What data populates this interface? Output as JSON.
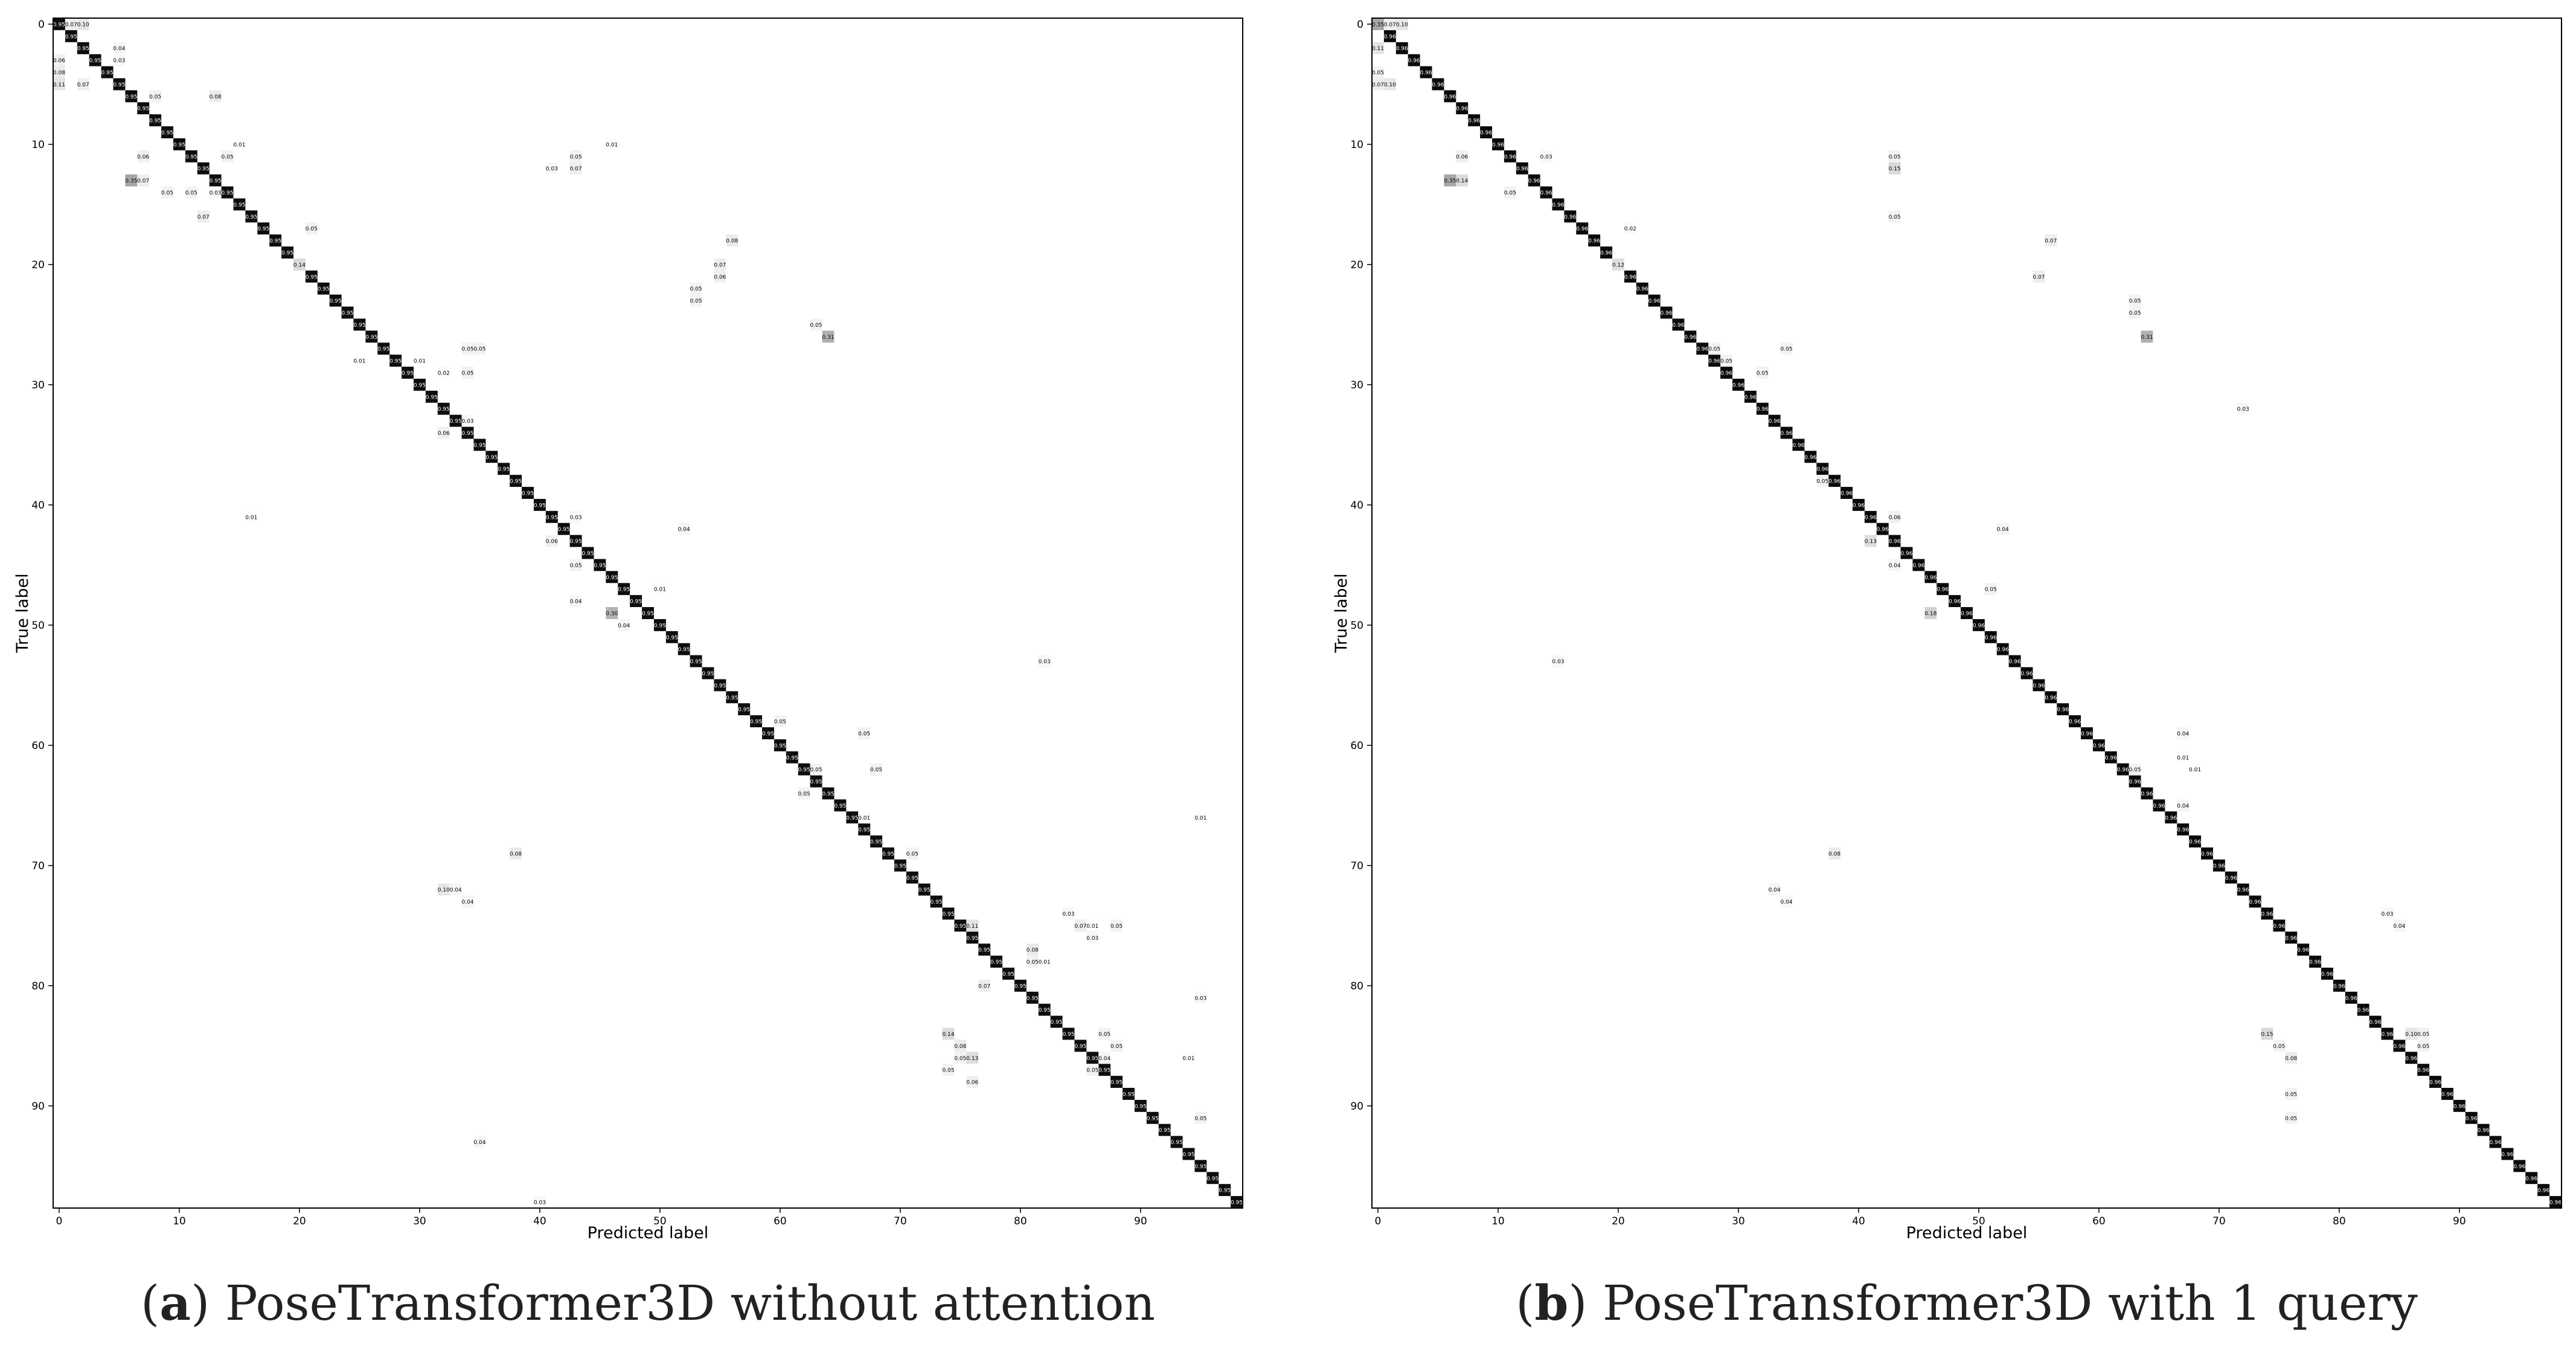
{
  "chart_data": [
    {
      "type": "heatmap",
      "caption": "PoseTransformer3D without attention",
      "caption_letter": "a",
      "xlabel": "Predicted label",
      "ylabel": "True label",
      "n_classes": 99,
      "xlim": [
        0,
        98
      ],
      "ylim": [
        98,
        0
      ],
      "x_ticks": [
        0,
        10,
        20,
        30,
        40,
        50,
        60,
        70,
        80,
        90
      ],
      "y_ticks": [
        0,
        10,
        20,
        30,
        40,
        50,
        60,
        70,
        80,
        90
      ],
      "grid": false,
      "colormap": "white-to-black",
      "diagonal_value": 0.95,
      "off_diagonal_cells": [
        {
          "true": 0,
          "pred": 1,
          "value": 0.07
        },
        {
          "true": 0,
          "pred": 2,
          "value": 0.1
        },
        {
          "true": 2,
          "pred": 5,
          "value": 0.04
        },
        {
          "true": 3,
          "pred": 0,
          "value": 0.06
        },
        {
          "true": 3,
          "pred": 5,
          "value": 0.03
        },
        {
          "true": 4,
          "pred": 0,
          "value": 0.08
        },
        {
          "true": 5,
          "pred": 0,
          "value": 0.11
        },
        {
          "true": 5,
          "pred": 2,
          "value": 0.07
        },
        {
          "true": 6,
          "pred": 8,
          "value": 0.05
        },
        {
          "true": 6,
          "pred": 13,
          "value": 0.08
        },
        {
          "true": 10,
          "pred": 15,
          "value": 0.01
        },
        {
          "true": 11,
          "pred": 7,
          "value": 0.06
        },
        {
          "true": 11,
          "pred": 14,
          "value": 0.05
        },
        {
          "true": 11,
          "pred": 43,
          "value": 0.05
        },
        {
          "true": 10,
          "pred": 46,
          "value": 0.01
        },
        {
          "true": 12,
          "pred": 41,
          "value": 0.03
        },
        {
          "true": 12,
          "pred": 43,
          "value": 0.07
        },
        {
          "true": 13,
          "pred": 6,
          "value": 0.35
        },
        {
          "true": 13,
          "pred": 7,
          "value": 0.07
        },
        {
          "true": 14,
          "pred": 9,
          "value": 0.05
        },
        {
          "true": 14,
          "pred": 11,
          "value": 0.05
        },
        {
          "true": 14,
          "pred": 13,
          "value": 0.03
        },
        {
          "true": 16,
          "pred": 12,
          "value": 0.07
        },
        {
          "true": 17,
          "pred": 21,
          "value": 0.05
        },
        {
          "true": 18,
          "pred": 56,
          "value": 0.08
        },
        {
          "true": 20,
          "pred": 20,
          "value": 0.14
        },
        {
          "true": 20,
          "pred": 55,
          "value": 0.07
        },
        {
          "true": 21,
          "pred": 55,
          "value": 0.06
        },
        {
          "true": 22,
          "pred": 53,
          "value": 0.05
        },
        {
          "true": 23,
          "pred": 53,
          "value": 0.05
        },
        {
          "true": 25,
          "pred": 63,
          "value": 0.05
        },
        {
          "true": 26,
          "pred": 64,
          "value": 0.31
        },
        {
          "true": 27,
          "pred": 34,
          "value": 0.05
        },
        {
          "true": 27,
          "pred": 35,
          "value": 0.05
        },
        {
          "true": 28,
          "pred": 25,
          "value": 0.01
        },
        {
          "true": 28,
          "pred": 30,
          "value": 0.01
        },
        {
          "true": 29,
          "pred": 32,
          "value": 0.02
        },
        {
          "true": 29,
          "pred": 34,
          "value": 0.05
        },
        {
          "true": 33,
          "pred": 34,
          "value": 0.03
        },
        {
          "true": 34,
          "pred": 32,
          "value": 0.06
        },
        {
          "true": 41,
          "pred": 16,
          "value": 0.01
        },
        {
          "true": 41,
          "pred": 43,
          "value": 0.03
        },
        {
          "true": 42,
          "pred": 52,
          "value": 0.04
        },
        {
          "true": 43,
          "pred": 41,
          "value": 0.06
        },
        {
          "true": 45,
          "pred": 43,
          "value": 0.05
        },
        {
          "true": 47,
          "pred": 50,
          "value": 0.01
        },
        {
          "true": 48,
          "pred": 43,
          "value": 0.04
        },
        {
          "true": 49,
          "pred": 46,
          "value": 0.3
        },
        {
          "true": 50,
          "pred": 47,
          "value": 0.04
        },
        {
          "true": 53,
          "pred": 82,
          "value": 0.03
        },
        {
          "true": 58,
          "pred": 60,
          "value": 0.05
        },
        {
          "true": 59,
          "pred": 67,
          "value": 0.05
        },
        {
          "true": 62,
          "pred": 63,
          "value": 0.05
        },
        {
          "true": 62,
          "pred": 68,
          "value": 0.05
        },
        {
          "true": 64,
          "pred": 62,
          "value": 0.05
        },
        {
          "true": 66,
          "pred": 67,
          "value": 0.01
        },
        {
          "true": 66,
          "pred": 95,
          "value": 0.01
        },
        {
          "true": 69,
          "pred": 38,
          "value": 0.08
        },
        {
          "true": 69,
          "pred": 71,
          "value": 0.05
        },
        {
          "true": 72,
          "pred": 32,
          "value": 0.1
        },
        {
          "true": 72,
          "pred": 33,
          "value": 0.04
        },
        {
          "true": 73,
          "pred": 34,
          "value": 0.04
        },
        {
          "true": 74,
          "pred": 84,
          "value": 0.03
        },
        {
          "true": 75,
          "pred": 76,
          "value": 0.11
        },
        {
          "true": 75,
          "pred": 85,
          "value": 0.07
        },
        {
          "true": 75,
          "pred": 86,
          "value": 0.01
        },
        {
          "true": 75,
          "pred": 88,
          "value": 0.05
        },
        {
          "true": 76,
          "pred": 86,
          "value": 0.03
        },
        {
          "true": 77,
          "pred": 81,
          "value": 0.08
        },
        {
          "true": 78,
          "pred": 81,
          "value": 0.05
        },
        {
          "true": 78,
          "pred": 82,
          "value": 0.01
        },
        {
          "true": 80,
          "pred": 77,
          "value": 0.07
        },
        {
          "true": 81,
          "pred": 95,
          "value": 0.03
        },
        {
          "true": 84,
          "pred": 74,
          "value": 0.14
        },
        {
          "true": 84,
          "pred": 87,
          "value": 0.05
        },
        {
          "true": 85,
          "pred": 75,
          "value": 0.08
        },
        {
          "true": 85,
          "pred": 88,
          "value": 0.05
        },
        {
          "true": 86,
          "pred": 75,
          "value": 0.05
        },
        {
          "true": 86,
          "pred": 76,
          "value": 0.13
        },
        {
          "true": 86,
          "pred": 94,
          "value": 0.01
        },
        {
          "true": 86,
          "pred": 87,
          "value": 0.04
        },
        {
          "true": 87,
          "pred": 74,
          "value": 0.05
        },
        {
          "true": 87,
          "pred": 86,
          "value": 0.05
        },
        {
          "true": 88,
          "pred": 76,
          "value": 0.06
        },
        {
          "true": 91,
          "pred": 95,
          "value": 0.05
        },
        {
          "true": 93,
          "pred": 35,
          "value": 0.04
        },
        {
          "true": 98,
          "pred": 40,
          "value": 0.03
        }
      ]
    },
    {
      "type": "heatmap",
      "caption": "PoseTransformer3D with 1 query",
      "caption_letter": "b",
      "xlabel": "Predicted label",
      "ylabel": "True label",
      "n_classes": 99,
      "xlim": [
        0,
        98
      ],
      "ylim": [
        98,
        0
      ],
      "x_ticks": [
        0,
        10,
        20,
        30,
        40,
        50,
        60,
        70,
        80,
        90
      ],
      "y_ticks": [
        0,
        10,
        20,
        30,
        40,
        50,
        60,
        70,
        80,
        90
      ],
      "grid": false,
      "colormap": "white-to-black",
      "diagonal_value": 0.96,
      "off_diagonal_cells": [
        {
          "true": 0,
          "pred": 0,
          "value": 0.35
        },
        {
          "true": 0,
          "pred": 1,
          "value": 0.07
        },
        {
          "true": 0,
          "pred": 2,
          "value": 0.1
        },
        {
          "true": 2,
          "pred": 0,
          "value": 0.11
        },
        {
          "true": 4,
          "pred": 0,
          "value": 0.05
        },
        {
          "true": 5,
          "pred": 0,
          "value": 0.07
        },
        {
          "true": 5,
          "pred": 1,
          "value": 0.1
        },
        {
          "true": 11,
          "pred": 7,
          "value": 0.06
        },
        {
          "true": 11,
          "pred": 14,
          "value": 0.03
        },
        {
          "true": 11,
          "pred": 43,
          "value": 0.05
        },
        {
          "true": 12,
          "pred": 43,
          "value": 0.15
        },
        {
          "true": 13,
          "pred": 6,
          "value": 0.35
        },
        {
          "true": 13,
          "pred": 7,
          "value": 0.14
        },
        {
          "true": 14,
          "pred": 11,
          "value": 0.05
        },
        {
          "true": 16,
          "pred": 43,
          "value": 0.05
        },
        {
          "true": 17,
          "pred": 21,
          "value": 0.02
        },
        {
          "true": 18,
          "pred": 56,
          "value": 0.07
        },
        {
          "true": 20,
          "pred": 20,
          "value": 0.12
        },
        {
          "true": 21,
          "pred": 55,
          "value": 0.07
        },
        {
          "true": 23,
          "pred": 63,
          "value": 0.05
        },
        {
          "true": 24,
          "pred": 63,
          "value": 0.05
        },
        {
          "true": 26,
          "pred": 64,
          "value": 0.31
        },
        {
          "true": 27,
          "pred": 28,
          "value": 0.05
        },
        {
          "true": 27,
          "pred": 34,
          "value": 0.05
        },
        {
          "true": 28,
          "pred": 29,
          "value": 0.05
        },
        {
          "true": 29,
          "pred": 32,
          "value": 0.05
        },
        {
          "true": 32,
          "pred": 72,
          "value": 0.03
        },
        {
          "true": 38,
          "pred": 37,
          "value": 0.05
        },
        {
          "true": 41,
          "pred": 43,
          "value": 0.06
        },
        {
          "true": 42,
          "pred": 52,
          "value": 0.04
        },
        {
          "true": 43,
          "pred": 41,
          "value": 0.13
        },
        {
          "true": 45,
          "pred": 43,
          "value": 0.04
        },
        {
          "true": 47,
          "pred": 51,
          "value": 0.05
        },
        {
          "true": 49,
          "pred": 46,
          "value": 0.18
        },
        {
          "true": 53,
          "pred": 15,
          "value": 0.03
        },
        {
          "true": 59,
          "pred": 67,
          "value": 0.04
        },
        {
          "true": 61,
          "pred": 67,
          "value": 0.01
        },
        {
          "true": 62,
          "pred": 63,
          "value": 0.05
        },
        {
          "true": 62,
          "pred": 68,
          "value": 0.01
        },
        {
          "true": 65,
          "pred": 67,
          "value": 0.04
        },
        {
          "true": 69,
          "pred": 38,
          "value": 0.08
        },
        {
          "true": 72,
          "pred": 33,
          "value": 0.04
        },
        {
          "true": 73,
          "pred": 34,
          "value": 0.04
        },
        {
          "true": 74,
          "pred": 84,
          "value": 0.03
        },
        {
          "true": 75,
          "pred": 85,
          "value": 0.04
        },
        {
          "true": 84,
          "pred": 74,
          "value": 0.15
        },
        {
          "true": 84,
          "pred": 86,
          "value": 0.1
        },
        {
          "true": 84,
          "pred": 87,
          "value": 0.05
        },
        {
          "true": 85,
          "pred": 75,
          "value": 0.05
        },
        {
          "true": 85,
          "pred": 87,
          "value": 0.05
        },
        {
          "true": 86,
          "pred": 76,
          "value": 0.08
        },
        {
          "true": 89,
          "pred": 76,
          "value": 0.05
        },
        {
          "true": 91,
          "pred": 76,
          "value": 0.05
        }
      ]
    }
  ]
}
